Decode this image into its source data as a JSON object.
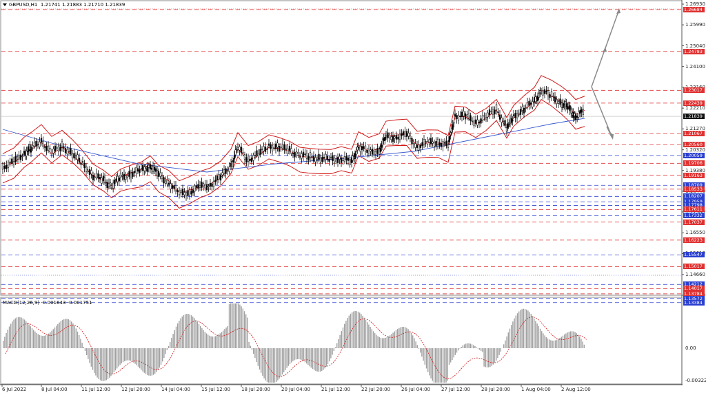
{
  "header": {
    "symbol": "GBPUSD,H1",
    "ohlc": "1.21741 1.21883 1.21710 1.21839"
  },
  "macd_header": {
    "label": "MACD(12,26,9)",
    "values": "-0.001643 -0.001751"
  },
  "price_axis": {
    "ticks": [
      "1.26930",
      "1.25990",
      "1.25040",
      "1.24100",
      "1.23160",
      "1.22210",
      "1.21270",
      "1.20320",
      "1.19380",
      "1.18440",
      "1.17500",
      "1.16550",
      "1.15610",
      "1.14660",
      "1.13720"
    ],
    "macd_ticks": [
      "0.004171",
      "0.00",
      "-0.003224"
    ]
  },
  "level_boxes": [
    {
      "text": "1.26684",
      "color": "#e03030"
    },
    {
      "text": "1.24783",
      "color": "#e03030"
    },
    {
      "text": "1.23017",
      "color": "#e03030"
    },
    {
      "text": "1.22439",
      "color": "#e03030"
    },
    {
      "text": "1.21839",
      "color": "#111111"
    },
    {
      "text": "1.21067",
      "color": "#e03030"
    },
    {
      "text": "1.20560",
      "color": "#e03030"
    },
    {
      "text": "1.20059",
      "color": "#2a3fd0"
    },
    {
      "text": "1.19706",
      "color": "#e03030"
    },
    {
      "text": "1.19163",
      "color": "#e03030"
    },
    {
      "text": "1.18709",
      "color": "#2a3fd0"
    },
    {
      "text": "1.18533",
      "color": "#e03030"
    },
    {
      "text": "1.18207",
      "color": "#2a3fd0"
    },
    {
      "text": "1.17959",
      "color": "#2a3fd0"
    },
    {
      "text": "1.17798",
      "color": "#2a3fd0"
    },
    {
      "text": "1.17611",
      "color": "#e03030"
    },
    {
      "text": "1.17332",
      "color": "#2a3fd0"
    },
    {
      "text": "1.17037",
      "color": "#e03030"
    },
    {
      "text": "1.16223",
      "color": "#e03030"
    },
    {
      "text": "1.15547",
      "color": "#2a3fd0"
    },
    {
      "text": "1.15017",
      "color": "#e03030"
    },
    {
      "text": "1.14212",
      "color": "#2a3fd0"
    },
    {
      "text": "1.14017",
      "color": "#e03030"
    },
    {
      "text": "1.13784",
      "color": "#e03030"
    },
    {
      "text": "1.13572",
      "color": "#2a3fd0"
    },
    {
      "text": "1.13384",
      "color": "#2a3fd0"
    }
  ],
  "time_axis": [
    "6 Jul 2022",
    "8 Jul 04:00",
    "11 Jul 12:00",
    "12 Jul 20:00",
    "14 Jul 04:00",
    "15 Jul 12:00",
    "18 Jul 20:00",
    "20 Jul 04:00",
    "21 Jul 12:00",
    "22 Jul 20:00",
    "26 Jul 04:00",
    "27 Jul 12:00",
    "28 Jul 20:00",
    "1 Aug 04:00",
    "2 Aug 12:00"
  ],
  "colors": {
    "resistance": "#e03030",
    "support": "#2a3fd0",
    "bollinger": "#d01818",
    "ma": "#3a5ad0",
    "candle": "#000000",
    "macd_hist": "#a0a0a0",
    "macd_signal": "#d01818",
    "arrow": "#8a8a8a"
  }
}
